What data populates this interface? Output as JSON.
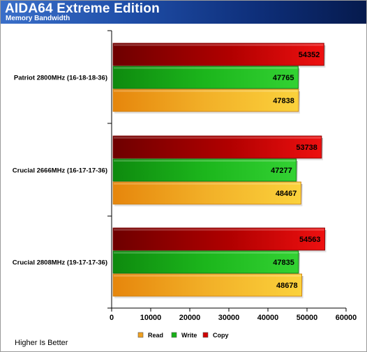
{
  "header": {
    "title": "AIDA64 Extreme Edition",
    "subtitle": "Memory Bandwidth"
  },
  "footer": {
    "note": "Higher Is Better"
  },
  "colors": {
    "copy": "#c80000",
    "write": "#17b117",
    "read": "#f0a020"
  },
  "chart_data": {
    "type": "bar",
    "orientation": "horizontal",
    "categories": [
      "Patriot 2800MHz (16-18-18-36)",
      "Crucial 2666MHz (16-17-17-36)",
      "Crucial 2808MHz (19-17-17-36)"
    ],
    "series": [
      {
        "name": "Copy",
        "values": [
          54352,
          53738,
          54563
        ]
      },
      {
        "name": "Write",
        "values": [
          47765,
          47277,
          47835
        ]
      },
      {
        "name": "Read",
        "values": [
          47838,
          48467,
          48678
        ]
      }
    ],
    "legend_order": [
      "Read",
      "Write",
      "Copy"
    ],
    "xlim": [
      0,
      60000
    ],
    "xticks": [
      "0",
      "10000",
      "20000",
      "30000",
      "40000",
      "50000",
      "60000"
    ],
    "grid": false,
    "legend_position": "bottom"
  }
}
